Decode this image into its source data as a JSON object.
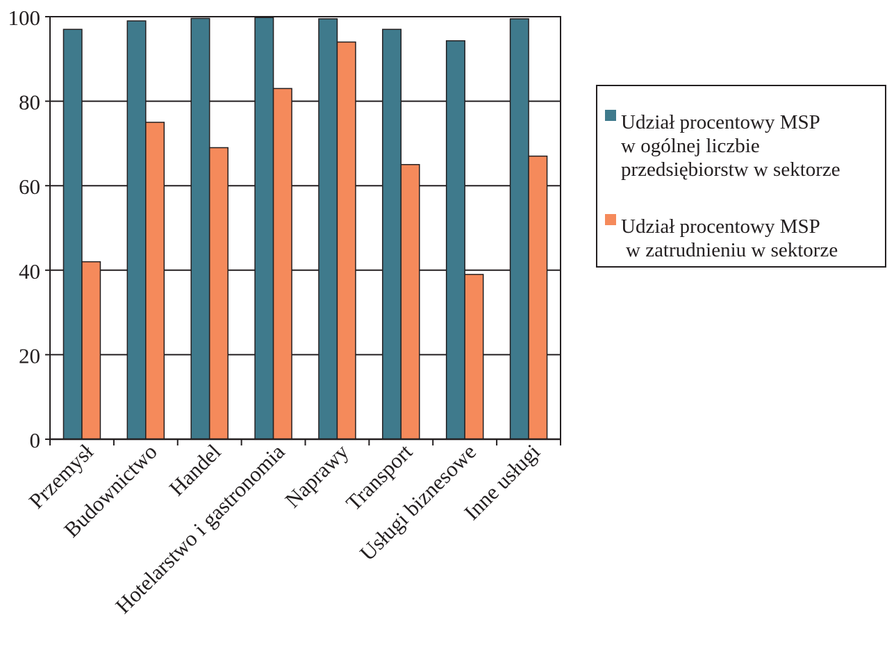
{
  "chart_data": {
    "type": "bar",
    "categories": [
      "Przemysł",
      "Budownictwo",
      "Handel",
      "Hotelarstwo i gastronomia",
      "Naprawy",
      "Transport",
      "Usługi biznesowe",
      "Inne usługi"
    ],
    "series": [
      {
        "name": "Udział procentowy MSP w ogólnej liczbie przedsiębiorstw w sektorze",
        "legend_lines": [
          "Udział procentowy MSP",
          "w ogólnej liczbie",
          "przedsiębiorstw w sektorze"
        ],
        "color": "#3f7a8c",
        "values": [
          97,
          99,
          99.6,
          99.8,
          99.5,
          97,
          94.3,
          99.5
        ]
      },
      {
        "name": "Udział procentowy MSP w zatrudnieniu w sektorze",
        "legend_lines": [
          "Udział procentowy MSP",
          "w zatrudnieniu w sektorze"
        ],
        "color": "#f58a5b",
        "values": [
          42,
          75,
          69,
          83,
          94,
          65,
          39,
          67
        ]
      }
    ],
    "ylim": [
      0,
      100
    ],
    "yticks": [
      "0",
      "20",
      "40",
      "60",
      "80",
      "100"
    ],
    "grid": true,
    "legend_position": "right"
  }
}
